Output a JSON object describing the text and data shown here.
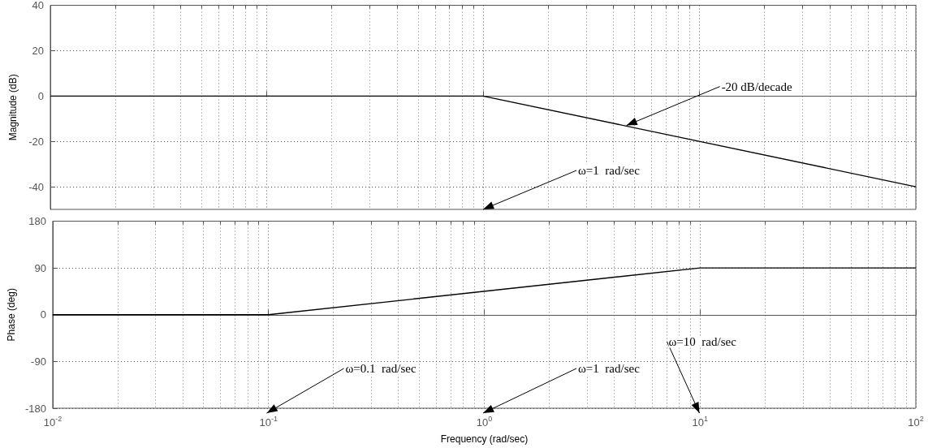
{
  "chart_data": [
    {
      "type": "line",
      "ylabel": "Magnitude (dB)",
      "log": "x",
      "series": [
        {
          "color": "#000000",
          "x": [
            0.01,
            1,
            100
          ],
          "values": [
            0,
            0,
            -40
          ]
        }
      ],
      "xlim": [
        0.01,
        100
      ],
      "xticks": [
        {
          "value": 0.01,
          "label": null
        },
        {
          "value": 0.1,
          "label": null
        },
        {
          "value": 1,
          "label": null
        },
        {
          "value": 10,
          "label": null
        },
        {
          "value": 100,
          "label": null
        }
      ],
      "ylim": [
        -50,
        40
      ],
      "yticks": [
        -40,
        -20,
        0,
        20,
        40
      ],
      "tick_labels": "y",
      "grid": true,
      "marker": "none",
      "line_style": "solid",
      "annotations": [
        {
          "text": "-20 dB/decade",
          "x": 4.6,
          "y": -13
        },
        "ω=1  rad/sec"
      ]
    },
    {
      "type": "line",
      "ylabel": "Phase (deg)",
      "xlabel": "Frequency (rad/sec)",
      "log": "x",
      "series": [
        {
          "color": "#000000",
          "x": [
            0.01,
            0.1,
            10,
            100
          ],
          "values": [
            0,
            0,
            90,
            90
          ]
        }
      ],
      "xlim": [
        0.01,
        100
      ],
      "xticks": [
        {
          "value": 0.01,
          "label": "10$^{-2}$"
        },
        {
          "value": 0.1,
          "label": "10$^{-1}$"
        },
        {
          "value": 1,
          "label": "10$^{0}$"
        },
        {
          "value": 10,
          "label": "10$^{1}$"
        },
        {
          "value": 100,
          "label": "10$^{2}$"
        }
      ],
      "ylim": [
        -180,
        180
      ],
      "yticks": [
        -180,
        -90,
        0,
        90,
        180
      ],
      "grid": true,
      "marker": "none",
      "line_style": "solid",
      "annotations": [
        "ω=0.1  rad/sec",
        "ω=1  rad/sec",
        "ω=10  rad/sec"
      ]
    }
  ]
}
